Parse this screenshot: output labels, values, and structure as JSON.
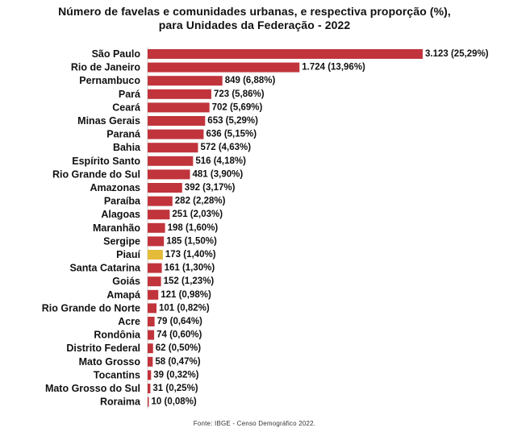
{
  "chart_data": {
    "type": "bar",
    "orientation": "horizontal",
    "title_lines": [
      "Número de favelas e comunidades urbanas, e respectiva proporção (%),",
      "para Unidades da Federação - 2022"
    ],
    "categories": [
      "São Paulo",
      "Rio de Janeiro",
      "Pernambuco",
      "Pará",
      "Ceará",
      "Minas Gerais",
      "Paraná",
      "Bahia",
      "Espírito Santo",
      "Rio Grande do Sul",
      "Amazonas",
      "Paraíba",
      "Alagoas",
      "Maranhão",
      "Sergipe",
      "Piauí",
      "Santa Catarina",
      "Goiás",
      "Amapá",
      "Rio Grande do Norte",
      "Acre",
      "Rondônia",
      "Distrito Federal",
      "Mato Grosso",
      "Tocantins",
      "Mato Grosso do Sul",
      "Roraima"
    ],
    "values": [
      3123,
      1724,
      849,
      723,
      702,
      653,
      636,
      572,
      516,
      481,
      392,
      282,
      251,
      198,
      185,
      173,
      161,
      152,
      121,
      101,
      79,
      74,
      62,
      58,
      39,
      31,
      10
    ],
    "percentages": [
      25.29,
      13.96,
      6.88,
      5.86,
      5.69,
      5.29,
      5.15,
      4.63,
      4.18,
      3.9,
      3.17,
      2.28,
      2.03,
      1.6,
      1.5,
      1.4,
      1.3,
      1.23,
      0.98,
      0.82,
      0.64,
      0.6,
      0.5,
      0.47,
      0.32,
      0.25,
      0.08
    ],
    "value_labels": [
      "3.123 (25,29%)",
      "1.724 (13,96%)",
      "849 (6,88%)",
      "723 (5,86%)",
      "702 (5,69%)",
      "653 (5,29%)",
      "636 (5,15%)",
      "572 (4,63%)",
      "516 (4,18%)",
      "481 (3,90%)",
      "392 (3,17%)",
      "282 (2,28%)",
      "251 (2,03%)",
      "198 (1,60%)",
      "185 (1,50%)",
      "173 (1,40%)",
      "161 (1,30%)",
      "152 (1,23%)",
      "121 (0,98%)",
      "101 (0,82%)",
      "79 (0,64%)",
      "74 (0,60%)",
      "62 (0,50%)",
      "58 (0,47%)",
      "39 (0,32%)",
      "31 (0,25%)",
      "10 (0,08%)"
    ],
    "highlight_category": "Piauí",
    "colors": {
      "bar": "#c1343c",
      "highlight": "#e5bb3a",
      "axis": "#cccccc"
    },
    "xlim": [
      0,
      3123
    ],
    "grid": false,
    "legend": "none"
  },
  "source": "Fonte: IBGE - Censo Demográfico 2022."
}
